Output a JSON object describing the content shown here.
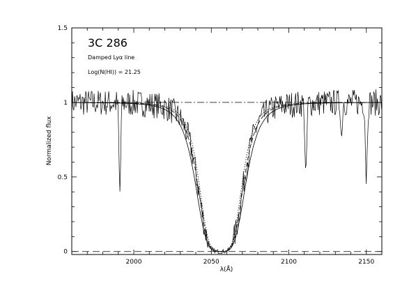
{
  "chart_data": {
    "type": "line",
    "xlabel": "λ(Å)",
    "ylabel": "Normalized flux",
    "xlim": [
      1960,
      2160
    ],
    "ylim": [
      -0.02,
      1.5
    ],
    "x_ticks": [
      {
        "value": 2000,
        "label": "2000"
      },
      {
        "value": 2050,
        "label": "2050"
      },
      {
        "value": 2100,
        "label": "2100"
      },
      {
        "value": 2150,
        "label": "2150"
      }
    ],
    "y_ticks": [
      {
        "value": 0,
        "label": "0"
      },
      {
        "value": 0.5,
        "label": "0.5"
      },
      {
        "value": 1,
        "label": "1"
      },
      {
        "value": 1.5,
        "label": "1.5"
      }
    ],
    "annotations": {
      "object": "3C 286",
      "line1": "Damped Lyα line",
      "line2": "Log(N(HI)) = 21.25"
    },
    "reference_lines": [
      {
        "y": 1.0,
        "style": "dash-dot"
      },
      {
        "y": 0.0,
        "style": "dashed"
      }
    ],
    "model": {
      "center": 2056,
      "widths": {
        "solid": 17,
        "dashed": 15.5,
        "dotted": 14.5
      }
    },
    "absorption_features": [
      {
        "x": 1991,
        "depth": 0.6,
        "width": 0.8
      },
      {
        "x": 2111,
        "depth": 0.52,
        "width": 0.8
      },
      {
        "x": 2150,
        "depth": 0.5,
        "width": 0.8
      },
      {
        "x": 2134,
        "depth": 0.25,
        "width": 0.6
      }
    ]
  }
}
